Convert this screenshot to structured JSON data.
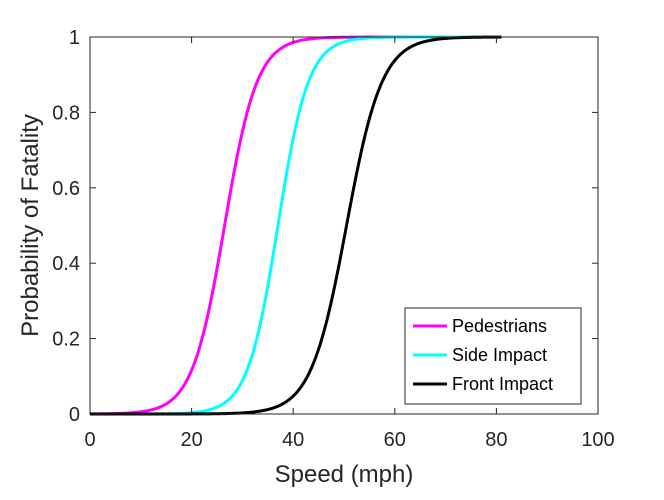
{
  "chart_data": {
    "type": "line",
    "title": "",
    "xlabel": "Speed (mph)",
    "ylabel": "Probability of Fatality",
    "xlim": [
      0,
      100
    ],
    "ylim": [
      0,
      1
    ],
    "xticks": [
      0,
      20,
      40,
      60,
      80,
      100
    ],
    "yticks": [
      0,
      0.2,
      0.4,
      0.6,
      0.8,
      1
    ],
    "xtick_labels": [
      "0",
      "20",
      "40",
      "60",
      "80",
      "100"
    ],
    "ytick_labels": [
      "0",
      "0.2",
      "0.4",
      "0.6",
      "0.8",
      "1"
    ],
    "grid": false,
    "legend_position": "bottom-right",
    "x_range_plotted": [
      0,
      81
    ],
    "series": [
      {
        "name": "Pedestrians",
        "color": "#ff00ff",
        "curve": "logistic",
        "midpoint_mph": 26.5,
        "scale_mph": 3.2,
        "sample_values": [
          {
            "x": 10,
            "y": 0.01
          },
          {
            "x": 20,
            "y": 0.12
          },
          {
            "x": 25,
            "y": 0.38
          },
          {
            "x": 30,
            "y": 0.75
          },
          {
            "x": 35,
            "y": 0.94
          },
          {
            "x": 40,
            "y": 0.99
          },
          {
            "x": 50,
            "y": 1.0
          }
        ]
      },
      {
        "name": "Side Impact",
        "color": "#00ffff",
        "curve": "logistic",
        "midpoint_mph": 37.0,
        "scale_mph": 3.0,
        "sample_values": [
          {
            "x": 25,
            "y": 0.02
          },
          {
            "x": 30,
            "y": 0.09
          },
          {
            "x": 35,
            "y": 0.34
          },
          {
            "x": 40,
            "y": 0.73
          },
          {
            "x": 45,
            "y": 0.94
          },
          {
            "x": 50,
            "y": 0.99
          },
          {
            "x": 60,
            "y": 1.0
          }
        ]
      },
      {
        "name": "Front Impact",
        "color": "#000000",
        "curve": "logistic",
        "midpoint_mph": 50.5,
        "scale_mph": 3.5,
        "sample_values": [
          {
            "x": 35,
            "y": 0.01
          },
          {
            "x": 40,
            "y": 0.05
          },
          {
            "x": 45,
            "y": 0.17
          },
          {
            "x": 50,
            "y": 0.46
          },
          {
            "x": 55,
            "y": 0.79
          },
          {
            "x": 60,
            "y": 0.94
          },
          {
            "x": 70,
            "y": 0.99
          },
          {
            "x": 80,
            "y": 1.0
          }
        ]
      }
    ]
  }
}
